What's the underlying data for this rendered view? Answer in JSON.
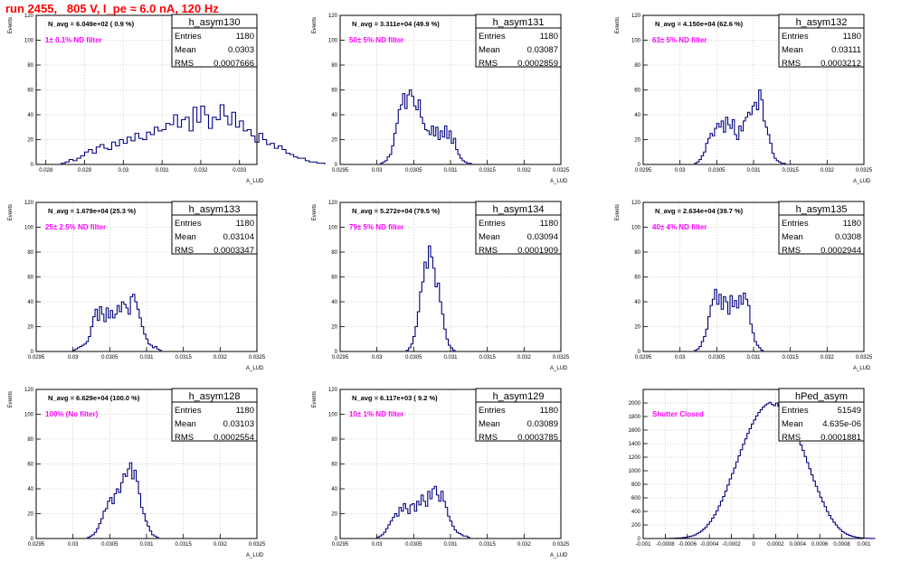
{
  "header": {
    "title": "run 2455,   805 V, I_pe ≈ 6.0 nA, 120 Hz"
  },
  "colors": {
    "title": "#ff0000",
    "filter_label": "#ff00ff",
    "histogram": "#00007f",
    "grid": "#c8c8c8"
  },
  "chart_data": [
    {
      "type": "histogram",
      "title": "h_asym130",
      "ylabel": "Events",
      "xlabel": "A_LUD",
      "n_avg": "N_avg = 6.049e+02 ( 0.9 %)",
      "filter": "1± 0.1% ND filter",
      "stats": [
        [
          "Entries",
          "1180"
        ],
        [
          "Mean",
          "0.0303"
        ],
        [
          "RMS",
          "0.0007666"
        ]
      ],
      "xlim": [
        0.02775,
        0.03345
      ],
      "ylim": [
        0,
        120
      ],
      "xticks": [
        0.028,
        0.029,
        0.03,
        0.031,
        0.032,
        0.033
      ],
      "xtick_labels": [
        "0.028",
        "0.029",
        "0.03",
        "0.031",
        "0.032",
        "0.033"
      ],
      "yticks": [
        0,
        20,
        40,
        60,
        80,
        100,
        120
      ],
      "bin_start": 0.0284,
      "bin_width": 0.0001,
      "counts": [
        1,
        2,
        4,
        3,
        5,
        7,
        10,
        12,
        9,
        14,
        16,
        13,
        12,
        18,
        15,
        20,
        17,
        22,
        19,
        25,
        21,
        20,
        26,
        24,
        30,
        27,
        28,
        33,
        32,
        40,
        30,
        36,
        38,
        27,
        46,
        34,
        47,
        40,
        29,
        38,
        36,
        48,
        39,
        32,
        42,
        30,
        35,
        27,
        28,
        23,
        18,
        25,
        20,
        16,
        17,
        13,
        15,
        12,
        9,
        8,
        6,
        5,
        5,
        3,
        2,
        2,
        1,
        1
      ]
    },
    {
      "type": "histogram",
      "title": "h_asym131",
      "ylabel": "Events",
      "xlabel": "A_LUD",
      "n_avg": "N_avg = 3.311e+04 (49.9 %)",
      "filter": "50± 5% ND filter",
      "stats": [
        [
          "Entries",
          "1180"
        ],
        [
          "Mean",
          "0.03087"
        ],
        [
          "RMS",
          "0.0002859"
        ]
      ],
      "xlim": [
        0.0295,
        0.0325
      ],
      "ylim": [
        0,
        120
      ],
      "xticks": [
        0.0295,
        0.03,
        0.0305,
        0.031,
        0.0315,
        0.032,
        0.0325
      ],
      "xtick_labels": [
        "0.0295",
        "0.03",
        "0.0305",
        "0.031",
        "0.0315",
        "0.032",
        "0.0325"
      ],
      "yticks": [
        0,
        20,
        40,
        60,
        80,
        100,
        120
      ],
      "bin_start": 0.03005,
      "bin_width": 3e-05,
      "counts": [
        1,
        2,
        3,
        6,
        8,
        15,
        25,
        33,
        44,
        48,
        57,
        45,
        56,
        60,
        55,
        47,
        44,
        52,
        38,
        33,
        28,
        27,
        24,
        31,
        23,
        30,
        20,
        27,
        22,
        31,
        21,
        27,
        17,
        21,
        12,
        8,
        5,
        3,
        2,
        1,
        1
      ]
    },
    {
      "type": "histogram",
      "title": "h_asym132",
      "ylabel": "Events",
      "xlabel": "A_LUD",
      "n_avg": "N_avg = 4.150e+04 (62.6 %)",
      "filter": "63± 5% ND filter",
      "stats": [
        [
          "Entries",
          "1180"
        ],
        [
          "Mean",
          "0.03111"
        ],
        [
          "RMS",
          "0.0003212"
        ]
      ],
      "xlim": [
        0.0295,
        0.0325
      ],
      "ylim": [
        0,
        120
      ],
      "xticks": [
        0.0295,
        0.03,
        0.0305,
        0.031,
        0.0315,
        0.032,
        0.0325
      ],
      "xtick_labels": [
        "0.0295",
        "0.03",
        "0.0305",
        "0.031",
        "0.0315",
        "0.032",
        "0.0325"
      ],
      "yticks": [
        0,
        20,
        40,
        60,
        80,
        100,
        120
      ],
      "bin_start": 0.0302,
      "bin_width": 3e-05,
      "counts": [
        1,
        2,
        4,
        7,
        10,
        17,
        21,
        25,
        23,
        29,
        33,
        30,
        35,
        26,
        38,
        32,
        29,
        36,
        24,
        20,
        31,
        27,
        35,
        38,
        42,
        40,
        47,
        50,
        44,
        60,
        52,
        35,
        30,
        24,
        17,
        9,
        5,
        3,
        2,
        1,
        1
      ]
    },
    {
      "type": "histogram",
      "title": "h_asym133",
      "ylabel": "Events",
      "xlabel": "A_LUD",
      "n_avg": "N_avg = 1.679e+04 (25.3 %)",
      "filter": "25± 2.5% ND filter",
      "stats": [
        [
          "Entries",
          "1180"
        ],
        [
          "Mean",
          "0.03104"
        ],
        [
          "RMS",
          "0.0003347"
        ]
      ],
      "xlim": [
        0.0295,
        0.0325
      ],
      "ylim": [
        0,
        120
      ],
      "xticks": [
        0.0295,
        0.03,
        0.0305,
        0.031,
        0.0315,
        0.032,
        0.0325
      ],
      "xtick_labels": [
        "0.0295",
        "0.03",
        "0.0305",
        "0.031",
        "0.0315",
        "0.032",
        "0.0325"
      ],
      "yticks": [
        0,
        20,
        40,
        60,
        80,
        100,
        120
      ],
      "bin_start": 0.03,
      "bin_width": 3e-05,
      "counts": [
        1,
        2,
        3,
        4,
        5,
        6,
        8,
        12,
        20,
        28,
        34,
        25,
        36,
        30,
        24,
        35,
        27,
        33,
        27,
        30,
        37,
        32,
        40,
        38,
        35,
        30,
        44,
        46,
        40,
        34,
        27,
        20,
        14,
        10,
        6,
        5,
        3,
        4,
        2,
        1
      ]
    },
    {
      "type": "histogram",
      "title": "h_asym134",
      "ylabel": "Events",
      "xlabel": "A_LUD",
      "n_avg": "N_avg = 5.272e+04 (79.5 %)",
      "filter": "79± 5% ND filter",
      "stats": [
        [
          "Entries",
          "1180"
        ],
        [
          "Mean",
          "0.03094"
        ],
        [
          "RMS",
          "0.0001909"
        ]
      ],
      "xlim": [
        0.0295,
        0.0325
      ],
      "ylim": [
        0,
        120
      ],
      "xticks": [
        0.0295,
        0.03,
        0.0305,
        0.031,
        0.0315,
        0.032,
        0.0325
      ],
      "xtick_labels": [
        "0.0295",
        "0.03",
        "0.0305",
        "0.031",
        "0.0315",
        "0.032",
        "0.0325"
      ],
      "yticks": [
        0,
        20,
        40,
        60,
        80,
        100,
        120
      ],
      "bin_start": 0.0304,
      "bin_width": 3e-05,
      "counts": [
        1,
        3,
        6,
        12,
        20,
        32,
        48,
        56,
        72,
        67,
        85,
        76,
        67,
        52,
        55,
        40,
        30,
        18,
        10,
        5,
        3,
        1
      ]
    },
    {
      "type": "histogram",
      "title": "h_asym135",
      "ylabel": "Events",
      "xlabel": "A_LUD",
      "n_avg": "N_avg = 2.634e+04 (39.7 %)",
      "filter": "40± 4% ND filter",
      "stats": [
        [
          "Entries",
          "1180"
        ],
        [
          "Mean",
          "0.0308"
        ],
        [
          "RMS",
          "0.0002944"
        ]
      ],
      "xlim": [
        0.0295,
        0.0325
      ],
      "ylim": [
        0,
        120
      ],
      "xticks": [
        0.0295,
        0.03,
        0.0305,
        0.031,
        0.0315,
        0.032,
        0.0325
      ],
      "xtick_labels": [
        "0.0295",
        "0.03",
        "0.0305",
        "0.031",
        "0.0315",
        "0.032",
        "0.0325"
      ],
      "yticks": [
        0,
        20,
        40,
        60,
        80,
        100,
        120
      ],
      "bin_start": 0.0302,
      "bin_width": 3e-05,
      "counts": [
        1,
        2,
        4,
        8,
        12,
        18,
        28,
        37,
        42,
        50,
        38,
        46,
        34,
        44,
        40,
        30,
        45,
        36,
        41,
        35,
        45,
        38,
        47,
        42,
        37,
        22,
        15,
        8,
        5,
        3,
        1
      ]
    },
    {
      "type": "histogram",
      "title": "h_asym128",
      "ylabel": "Events",
      "xlabel": "A_LUD",
      "n_avg": "N_avg = 6.629e+04 (100.0 %)",
      "filter": "100% (No filter)",
      "stats": [
        [
          "Entries",
          "1180"
        ],
        [
          "Mean",
          "0.03103"
        ],
        [
          "RMS",
          "0.0002554"
        ]
      ],
      "xlim": [
        0.0295,
        0.0325
      ],
      "ylim": [
        0,
        120
      ],
      "xticks": [
        0.0295,
        0.03,
        0.0305,
        0.031,
        0.0315,
        0.032,
        0.0325
      ],
      "xtick_labels": [
        "0.0295",
        "0.03",
        "0.0305",
        "0.031",
        "0.0315",
        "0.032",
        "0.0325"
      ],
      "yticks": [
        0,
        20,
        40,
        60,
        80,
        100,
        120
      ],
      "bin_start": 0.0302,
      "bin_width": 3e-05,
      "counts": [
        1,
        2,
        3,
        5,
        8,
        12,
        16,
        22,
        24,
        30,
        33,
        28,
        36,
        40,
        37,
        45,
        52,
        50,
        56,
        61,
        48,
        55,
        46,
        36,
        25,
        20,
        14,
        10,
        6,
        3,
        2,
        1
      ]
    },
    {
      "type": "histogram",
      "title": "h_asym129",
      "ylabel": "Events",
      "xlabel": "A_LUD",
      "n_avg": "N_avg = 6.117e+03 ( 9.2 %)",
      "filter": "10± 1% ND filter",
      "stats": [
        [
          "Entries",
          "1180"
        ],
        [
          "Mean",
          "0.03089"
        ],
        [
          "RMS",
          "0.0003785"
        ]
      ],
      "xlim": [
        0.0295,
        0.0325
      ],
      "ylim": [
        0,
        120
      ],
      "xticks": [
        0.0295,
        0.03,
        0.0305,
        0.031,
        0.0315,
        0.032,
        0.0325
      ],
      "xtick_labels": [
        "0.0295",
        "0.03",
        "0.0305",
        "0.031",
        "0.0315",
        "0.032",
        "0.0325"
      ],
      "yticks": [
        0,
        20,
        40,
        60,
        80,
        100,
        120
      ],
      "bin_start": 0.03,
      "bin_width": 3e-05,
      "counts": [
        1,
        2,
        3,
        5,
        8,
        11,
        14,
        17,
        20,
        18,
        25,
        22,
        28,
        24,
        20,
        27,
        28,
        22,
        30,
        27,
        35,
        30,
        26,
        38,
        32,
        40,
        42,
        35,
        30,
        38,
        30,
        25,
        18,
        14,
        10,
        7,
        5,
        4,
        3,
        2,
        2,
        1
      ]
    },
    {
      "type": "histogram",
      "title": "hPed_asym",
      "ylabel": "",
      "xlabel": "",
      "n_avg": "",
      "filter": "Shutter Closed",
      "stats": [
        [
          "Entries",
          "51549"
        ],
        [
          "Mean",
          "4.635e-06"
        ],
        [
          "RMS",
          "0.0001881"
        ]
      ],
      "xlim": [
        -0.001,
        0.001
      ],
      "ylim": [
        0,
        2200
      ],
      "xticks": [
        -0.001,
        -0.0008,
        -0.0006,
        -0.0004,
        -0.0002,
        0,
        0.0002,
        0.0004,
        0.0006,
        0.0008,
        0.001
      ],
      "xtick_labels": [
        "-0.001",
        "-0.0008",
        "-0.0006",
        "-0.0004",
        "-0.0002",
        "0",
        "0.0002",
        "0.0004",
        "0.0006",
        "0.0008",
        "0.001"
      ],
      "yticks": [
        0,
        200,
        400,
        600,
        800,
        1000,
        1200,
        1400,
        1600,
        1800,
        2000
      ],
      "bin_start": -0.0008,
      "bin_width": 2e-05,
      "counts": [
        1,
        1,
        2,
        3,
        4,
        6,
        8,
        10,
        14,
        18,
        25,
        32,
        40,
        52,
        70,
        90,
        110,
        140,
        170,
        210,
        250,
        300,
        350,
        410,
        480,
        550,
        620,
        700,
        790,
        880,
        960,
        1040,
        1130,
        1220,
        1310,
        1390,
        1470,
        1550,
        1620,
        1690,
        1750,
        1810,
        1860,
        1900,
        1940,
        1970,
        1990,
        2010,
        1980,
        1960,
        2000,
        1950,
        1930,
        1890,
        1850,
        1800,
        1740,
        1680,
        1610,
        1540,
        1460,
        1380,
        1300,
        1210,
        1120,
        1030,
        940,
        850,
        770,
        690,
        610,
        540,
        470,
        400,
        340,
        290,
        240,
        200,
        160,
        130,
        100,
        80,
        62,
        48,
        36,
        27,
        20,
        14,
        10,
        7,
        5,
        3,
        2,
        1,
        1
      ]
    }
  ]
}
